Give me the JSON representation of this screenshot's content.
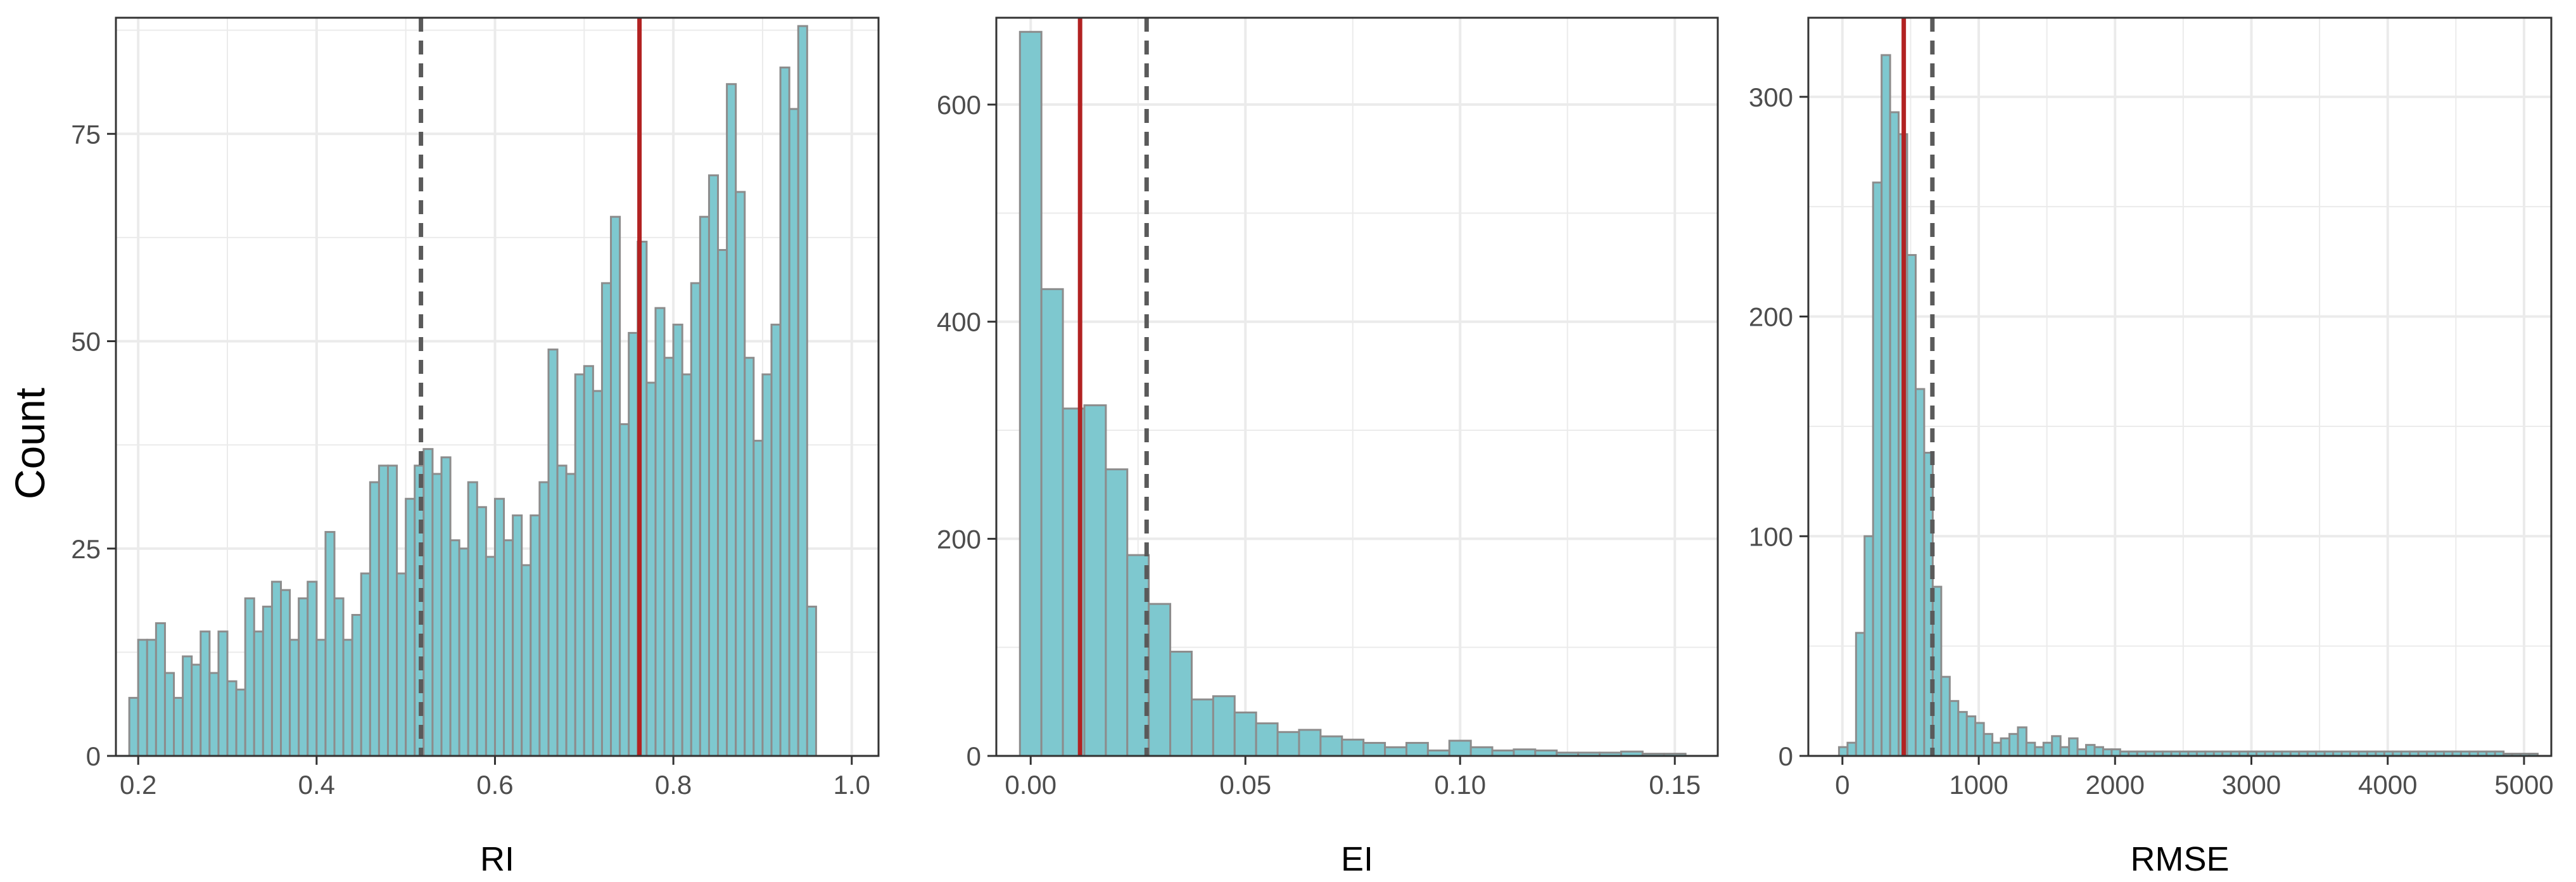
{
  "figure": {
    "ylabel": "Count"
  },
  "colors": {
    "bar_fill": "#7ec8cf",
    "bar_stroke": "#8c8c8c",
    "median_line": "#b22222",
    "mean_line": "#5a5a5a",
    "grid": "#ebebeb",
    "panel_border": "#333333"
  },
  "chart_data": [
    {
      "type": "histogram",
      "xlabel": "RI",
      "ylabel": "Count",
      "xlim": [
        0.175,
        1.03
      ],
      "ylim": [
        0,
        89
      ],
      "xticks": [
        0.2,
        0.4,
        0.6,
        0.8,
        1.0
      ],
      "xtick_labels": [
        "0.2",
        "0.4",
        "0.6",
        "0.8",
        "1.0"
      ],
      "yticks": [
        0,
        25,
        50,
        75
      ],
      "ytick_labels": [
        "0",
        "25",
        "50",
        "75"
      ],
      "bin_start": 0.19,
      "bin_width": 0.01,
      "counts": [
        7,
        14,
        14,
        16,
        10,
        7,
        12,
        11,
        15,
        10,
        15,
        9,
        8,
        19,
        15,
        18,
        21,
        20,
        14,
        19,
        21,
        14,
        27,
        19,
        14,
        17,
        22,
        33,
        35,
        35,
        22,
        31,
        35,
        37,
        34,
        36,
        26,
        25,
        33,
        30,
        24,
        31,
        26,
        29,
        23,
        29,
        33,
        49,
        35,
        34,
        46,
        47,
        44,
        57,
        65,
        40,
        51,
        62,
        45,
        54,
        48,
        52,
        46,
        57,
        65,
        70,
        61,
        81,
        68,
        48,
        38,
        46,
        52,
        83,
        78,
        88,
        18
      ],
      "mean_line": 0.517,
      "median_line": 0.762,
      "grid": true
    },
    {
      "type": "histogram",
      "xlabel": "EI",
      "ylabel": "Count",
      "xlim": [
        -0.008,
        0.16
      ],
      "ylim": [
        0,
        680
      ],
      "xticks": [
        0,
        0.05,
        0.1,
        0.15
      ],
      "xtick_labels": [
        "0.00",
        "0.05",
        "0.10",
        "0.15"
      ],
      "yticks": [
        0,
        200,
        400,
        600
      ],
      "ytick_labels": [
        "0",
        "200",
        "400",
        "600"
      ],
      "bin_start": -0.0025,
      "bin_width": 0.005,
      "counts": [
        667,
        430,
        320,
        323,
        264,
        185,
        140,
        96,
        52,
        55,
        40,
        30,
        22,
        24,
        18,
        15,
        12,
        8,
        12,
        5,
        14,
        8,
        5,
        6,
        5,
        3,
        3,
        3,
        4,
        2,
        2
      ],
      "mean_line": 0.027,
      "median_line": 0.0115,
      "grid": true
    },
    {
      "type": "histogram",
      "xlabel": "RMSE",
      "ylabel": "Count",
      "xlim": [
        -250,
        5200
      ],
      "ylim": [
        0,
        336
      ],
      "xticks": [
        0,
        1000,
        2000,
        3000,
        4000,
        5000
      ],
      "xtick_labels": [
        "0",
        "1000",
        "2000",
        "3000",
        "4000",
        "5000"
      ],
      "yticks": [
        0,
        100,
        200,
        300
      ],
      "ytick_labels": [
        "0",
        "100",
        "200",
        "300"
      ],
      "bin_start": -25,
      "bin_width": 62.5,
      "counts": [
        4,
        6,
        56,
        100,
        261,
        319,
        293,
        283,
        228,
        167,
        138,
        77,
        36,
        25,
        20,
        18,
        15,
        10,
        6,
        8,
        10,
        13,
        6,
        4,
        6,
        9,
        4,
        8,
        3,
        5,
        4,
        3,
        3,
        2,
        2,
        2,
        2,
        2,
        2,
        2,
        2,
        2,
        2,
        2,
        2,
        2,
        2,
        2,
        2,
        2,
        2,
        2,
        2,
        2,
        2,
        2,
        2,
        2,
        2,
        2,
        2,
        2,
        2,
        2,
        2,
        2,
        2,
        2,
        2,
        2,
        2,
        2,
        2,
        2,
        2,
        2,
        2,
        2,
        1,
        1,
        1,
        1
      ],
      "mean_line": 660,
      "median_line": 450,
      "grid": true
    }
  ]
}
